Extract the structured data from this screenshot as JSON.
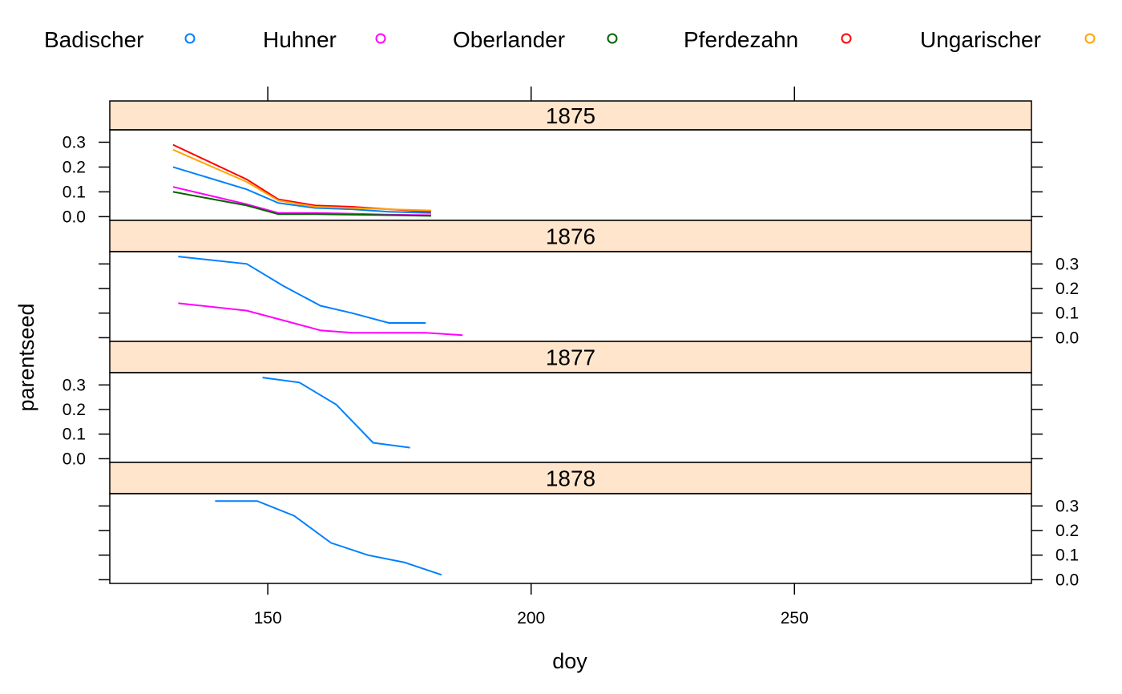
{
  "chart_data": {
    "type": "line",
    "layout": "lattice panels stacked vertically, one per year, y axis alternating left/right",
    "xlabel": "doy",
    "ylabel": "parentseed",
    "xlim": [
      120,
      295
    ],
    "ylim": [
      -0.015,
      0.35
    ],
    "x_ticks": [
      150,
      200,
      250
    ],
    "y_ticks": [
      0.0,
      0.1,
      0.2,
      0.3
    ],
    "legend_position": "top",
    "legend": [
      {
        "name": "Badischer",
        "color": "#0080ff"
      },
      {
        "name": "Huhner",
        "color": "#ff00ff"
      },
      {
        "name": "Oberlander",
        "color": "#006400"
      },
      {
        "name": "Pferdezahn",
        "color": "#ff0000"
      },
      {
        "name": "Ungarischer",
        "color": "#ffa500"
      }
    ],
    "panels": [
      {
        "strip": "1875",
        "y_axis_side": "left",
        "series": [
          {
            "name": "Badischer",
            "x": [
              132,
              146,
              152,
              159,
              166,
              173,
              181
            ],
            "y": [
              0.2,
              0.11,
              0.055,
              0.035,
              0.03,
              0.02,
              0.015
            ]
          },
          {
            "name": "Huhner",
            "x": [
              132,
              146,
              152,
              159,
              166,
              173,
              181
            ],
            "y": [
              0.12,
              0.05,
              0.015,
              0.015,
              0.012,
              0.008,
              0.006
            ]
          },
          {
            "name": "Oberlander",
            "x": [
              132,
              146,
              152,
              159,
              166,
              173,
              181
            ],
            "y": [
              0.1,
              0.045,
              0.01,
              0.01,
              0.008,
              0.006,
              0.003
            ]
          },
          {
            "name": "Pferdezahn",
            "x": [
              132,
              146,
              152,
              159,
              166,
              173,
              181
            ],
            "y": [
              0.29,
              0.15,
              0.07,
              0.045,
              0.04,
              0.03,
              0.02
            ]
          },
          {
            "name": "Ungarischer",
            "x": [
              132,
              146,
              152,
              159,
              166,
              173,
              181
            ],
            "y": [
              0.27,
              0.14,
              0.065,
              0.04,
              0.035,
              0.03,
              0.025
            ]
          }
        ]
      },
      {
        "strip": "1876",
        "y_axis_side": "right",
        "series": [
          {
            "name": "Badischer",
            "x": [
              133,
              146,
              153,
              160,
              166,
              173,
              180
            ],
            "y": [
              0.33,
              0.3,
              0.21,
              0.13,
              0.1,
              0.06,
              0.06
            ]
          },
          {
            "name": "Huhner",
            "x": [
              133,
              146,
              153,
              160,
              166,
              173,
              180,
              187
            ],
            "y": [
              0.14,
              0.11,
              0.07,
              0.03,
              0.02,
              0.02,
              0.02,
              0.01
            ]
          }
        ]
      },
      {
        "strip": "1877",
        "y_axis_side": "left",
        "series": [
          {
            "name": "Badischer",
            "x": [
              149,
              156,
              163,
              170,
              177
            ],
            "y": [
              0.33,
              0.31,
              0.22,
              0.065,
              0.045
            ]
          }
        ]
      },
      {
        "strip": "1878",
        "y_axis_side": "right",
        "series": [
          {
            "name": "Badischer",
            "x": [
              140,
              148,
              155,
              162,
              169,
              176,
              183
            ],
            "y": [
              0.32,
              0.32,
              0.26,
              0.15,
              0.1,
              0.07,
              0.02
            ]
          }
        ]
      }
    ]
  }
}
